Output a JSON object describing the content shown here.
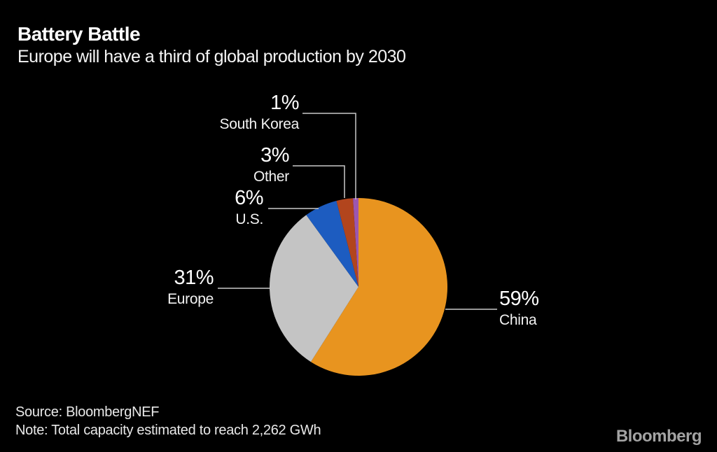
{
  "header": {
    "title": "Battery Battle",
    "subtitle": "Europe will have a third of global production by 2030"
  },
  "footer": {
    "source": "Source: BloombergNEF",
    "note": "Note: Total capacity estimated to reach 2,262 GWh",
    "logo": "Bloomberg"
  },
  "chart_data": {
    "type": "pie",
    "title": "Battery Battle",
    "subtitle": "Europe will have a third of global production by 2030",
    "unit": "%",
    "direction": "clockwise",
    "start_angle_deg": 0,
    "background_color": "#000000",
    "leader_line_color": "#c9c9c9",
    "total_note": "Total capacity estimated to reach 2,262 GWh",
    "slices": [
      {
        "label": "China",
        "value": 59,
        "pct_label": "59%",
        "color": "#e8941f"
      },
      {
        "label": "Europe",
        "value": 31,
        "pct_label": "31%",
        "color": "#c4c4c4"
      },
      {
        "label": "U.S.",
        "value": 6,
        "pct_label": "6%",
        "color": "#1d5cc0"
      },
      {
        "label": "Other",
        "value": 3,
        "pct_label": "3%",
        "color": "#b2451d"
      },
      {
        "label": "South Korea",
        "value": 1,
        "pct_label": "1%",
        "color": "#9c57b0"
      }
    ]
  }
}
